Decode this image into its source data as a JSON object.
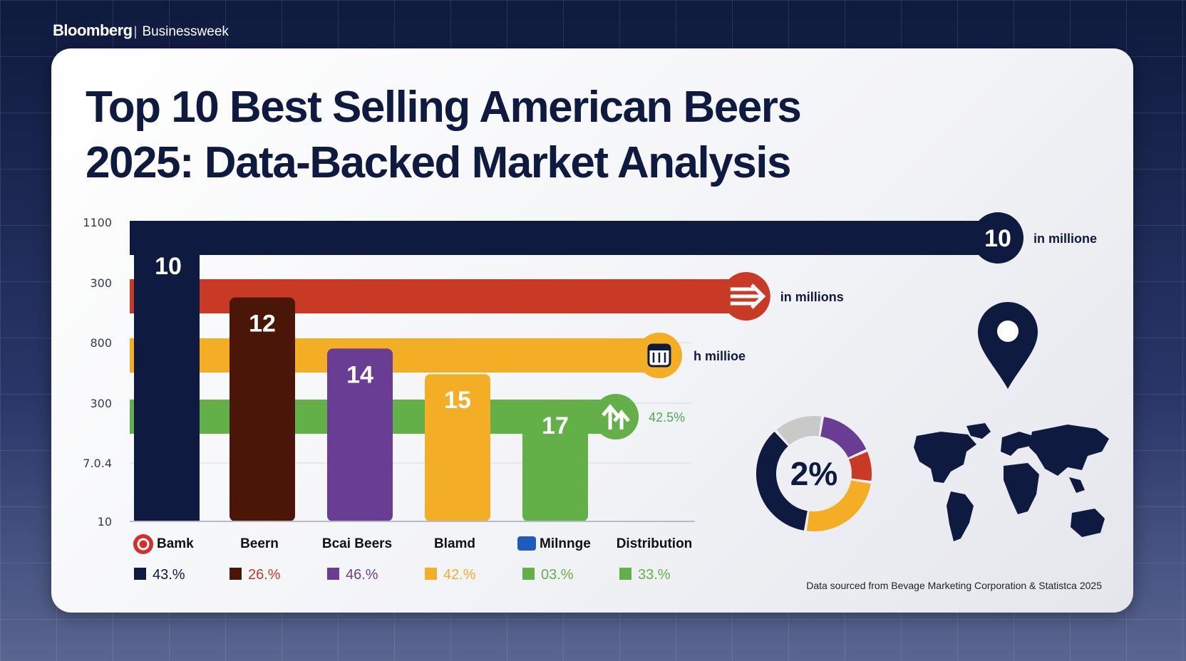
{
  "brand": {
    "name": "Bloomberg",
    "separator": "|",
    "sub": "Businessweek"
  },
  "title": {
    "line1": "Top 10 Best Selling American Beers",
    "line2": "2025: Data-Backed Market Analysis"
  },
  "source": "Data sourced from Bevage Marketing Corporation & Statistca 2025",
  "colors": {
    "navy": "#0e1a3f",
    "red": "#c83a26",
    "brown": "#4a1608",
    "purple": "#6a3d94",
    "orange": "#f3ae25",
    "green": "#64b048",
    "grey": "#c9c9c9"
  },
  "chart_data": {
    "type": "bar",
    "y_tick_labels": [
      "1100",
      "300",
      "800",
      "300",
      "7.0.4",
      "10"
    ],
    "categories": [
      "Bamk",
      "Beern",
      "Bcai Beers",
      "Blamd",
      "Milnnge",
      "Distribution"
    ],
    "bar_labels": [
      "10",
      "12",
      "14",
      "15",
      "17"
    ],
    "bar_heights": [
      1.0,
      0.745,
      0.575,
      0.49,
      0.405
    ],
    "lines": [
      {
        "label": "in millione",
        "badge": "10",
        "end": 1.0,
        "color": "navy",
        "icon": "number-badge"
      },
      {
        "label": "in millions",
        "end": 0.71,
        "color": "red",
        "icon": "arrow-icon"
      },
      {
        "label": "h millioe",
        "end": 0.61,
        "color": "orange",
        "icon": "calendar-icon"
      },
      {
        "label": "42.5%",
        "end": 0.56,
        "color": "green",
        "icon": "growth-arrow-icon"
      }
    ],
    "legend": [
      {
        "value": "43.%",
        "color": "navy"
      },
      {
        "value": "26.%",
        "color": "brown"
      },
      {
        "value": "46.%",
        "color": "purple"
      },
      {
        "value": "42.%",
        "color": "orange"
      },
      {
        "value": "03.%",
        "color": "green"
      },
      {
        "value": "33.%",
        "color": "green"
      }
    ],
    "donut": {
      "center_label": "2%",
      "segments": [
        {
          "value": 16,
          "color": "purple"
        },
        {
          "value": 9,
          "color": "red"
        },
        {
          "value": 25,
          "color": "orange"
        },
        {
          "value": 36,
          "color": "navy"
        },
        {
          "value": 14,
          "color": "grey"
        }
      ]
    }
  }
}
